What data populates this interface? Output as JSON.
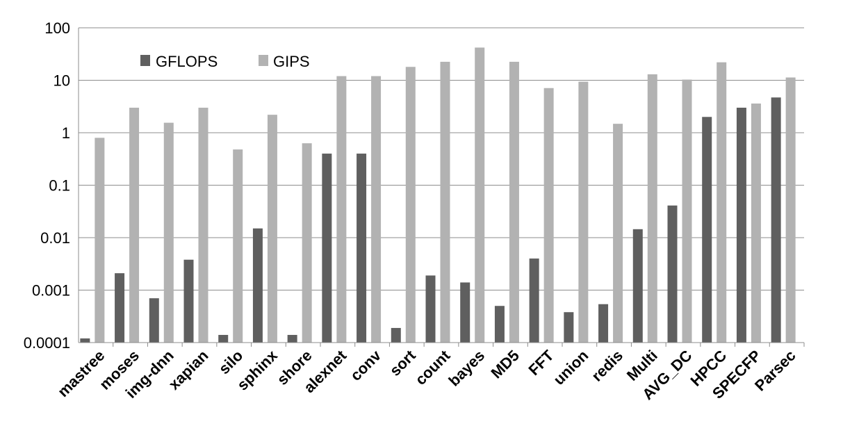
{
  "chart_data": {
    "type": "bar",
    "title": "",
    "xlabel": "",
    "ylabel": "",
    "yscale": "log",
    "ylim": [
      0.0001,
      100
    ],
    "yticks": [
      "0.0001",
      "0.001",
      "0.01",
      "0.1",
      "1",
      "10",
      "100"
    ],
    "grid": true,
    "legend_position": "top-left",
    "categories": [
      "mastree",
      "moses",
      "img-dnn",
      "xapian",
      "silo",
      "sphinx",
      "shore",
      "alexnet",
      "conv",
      "sort",
      "count",
      "bayes",
      "MD5",
      "FFT",
      "union",
      "redis",
      "Multi",
      "AVG_DC",
      "HPCC",
      "SPECFP",
      "Parsec"
    ],
    "series": [
      {
        "name": "GFLOPS",
        "color": "#5f5f5f",
        "values": [
          0.00012,
          0.0021,
          0.0007,
          0.0038,
          0.00014,
          0.015,
          0.00014,
          0.4,
          0.4,
          0.00019,
          0.0019,
          0.0014,
          0.0005,
          0.004,
          0.00038,
          0.00054,
          0.0145,
          0.041,
          2.0,
          3.0,
          4.7
        ]
      },
      {
        "name": "GIPS",
        "color": "#b2b2b2",
        "values": [
          0.8,
          3.0,
          1.55,
          3.0,
          0.48,
          2.2,
          0.63,
          12.0,
          12.0,
          18.0,
          22.5,
          42.0,
          22.5,
          7.1,
          9.4,
          1.48,
          13.0,
          10.3,
          22.0,
          3.6,
          11.3
        ]
      }
    ]
  }
}
